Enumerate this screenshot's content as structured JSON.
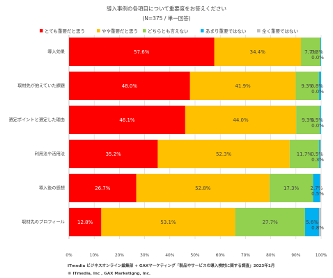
{
  "chart_data": {
    "type": "bar",
    "orientation": "horizontal",
    "stacked": true,
    "percent": true,
    "title": "導入事例の各項目について重要度をお答えください",
    "subtitle": "(N=375 / 単一回答)",
    "categories": [
      "導入効果",
      "取材先が抱えていた課題",
      "選定ポイントと選定した理由",
      "利用法や活用法",
      "導入後の感想",
      "取材先のプロフィール"
    ],
    "series": [
      {
        "name": "とても重要だと思う",
        "color": "#ff0000",
        "values": [
          57.6,
          48.0,
          46.1,
          35.2,
          26.7,
          12.8
        ]
      },
      {
        "name": "やや重要だと思う",
        "color": "#ffc000",
        "values": [
          34.4,
          41.9,
          44.0,
          52.3,
          52.8,
          53.1
        ]
      },
      {
        "name": "どちらとも言えない",
        "color": "#92d050",
        "values": [
          7.7,
          9.3,
          9.3,
          11.7,
          17.3,
          27.7
        ]
      },
      {
        "name": "あまり重要ではない",
        "color": "#00b0f0",
        "values": [
          0.3,
          0.8,
          0.5,
          0.5,
          2.7,
          5.6
        ]
      },
      {
        "name": "全く重要ではない",
        "color": "#bfbfbf",
        "values": [
          0.0,
          0.0,
          0.0,
          0.3,
          0.5,
          0.8
        ]
      }
    ],
    "data_labels": [
      [
        "57.6%",
        "34.4%",
        "7.7%",
        "0.3%",
        "0.0%"
      ],
      [
        "48.0%",
        "41.9%",
        "9.3%",
        "0.8%",
        "0.0%"
      ],
      [
        "46.1%",
        "44.0%",
        "9.3%",
        "0.5%",
        "0.0%"
      ],
      [
        "35.2%",
        "52.3%",
        "11.7%",
        "0.5%",
        "0.3%"
      ],
      [
        "26.7%",
        "52.8%",
        "17.3%",
        "2.7%",
        "0.5%"
      ],
      [
        "12.8%",
        "53.1%",
        "27.7%",
        "5.6%",
        "0.8%"
      ]
    ],
    "xlim": [
      0,
      100
    ],
    "x_ticks": [
      "0%",
      "10%",
      "20%",
      "30%",
      "40%",
      "50%",
      "60%",
      "70%",
      "80%",
      "90%",
      "100%"
    ],
    "grid": true,
    "legend_position": "top"
  },
  "footer": {
    "source": "ITmedia ビジネスオンライン編集部 + GAXマーケティング「製品やサービスの導入検討に関する調査」2023年1月",
    "copyright": "© ITmedia, Inc , GAX Marketigng, Inc."
  }
}
